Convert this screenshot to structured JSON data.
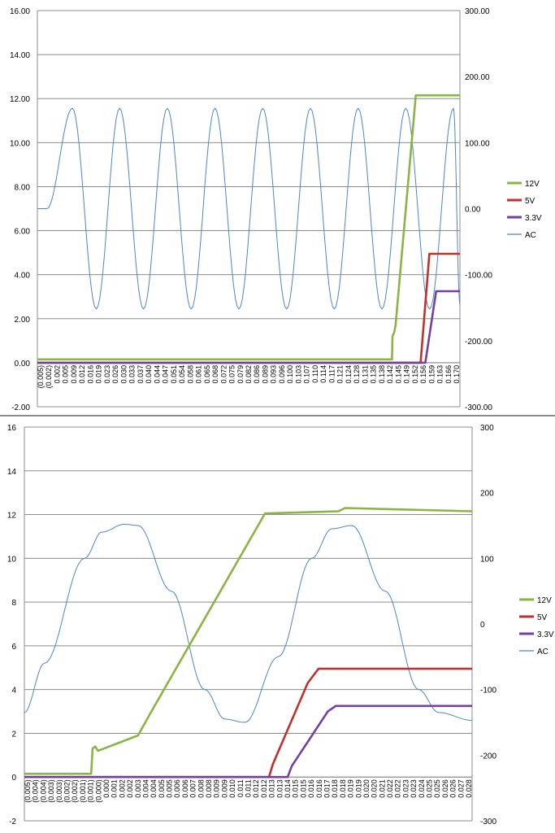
{
  "legend": {
    "items": [
      {
        "label": "12V",
        "color": "#8ab443"
      },
      {
        "label": "5V",
        "color": "#c0312b"
      },
      {
        "label": "3.3V",
        "color": "#7340a0"
      },
      {
        "label": "AC",
        "color": "#4c86c6"
      }
    ],
    "placement": "right"
  },
  "chart_data": [
    {
      "type": "line",
      "title": "",
      "xlabel": "",
      "ylabel": "",
      "ylim": [
        -2,
        16
      ],
      "y_ticks": [
        "-2.00",
        "0.00",
        "2.00",
        "4.00",
        "6.00",
        "8.00",
        "10.00",
        "12.00",
        "14.00",
        "16.00"
      ],
      "y2lim": [
        -300,
        300
      ],
      "y2_ticks": [
        "-300.00",
        "-200.00",
        "-100.00",
        "0.00",
        "100.00",
        "200.00",
        "300.00"
      ],
      "grid": true,
      "x_ticks": [
        "(0.005)",
        "(0.002)",
        "0.002",
        "0.005",
        "0.009",
        "0.012",
        "0.016",
        "0.019",
        "0.023",
        "0.026",
        "0.030",
        "0.033",
        "0.037",
        "0.040",
        "0.044",
        "0.047",
        "0.051",
        "0.054",
        "0.058",
        "0.061",
        "0.065",
        "0.068",
        "0.072",
        "0.075",
        "0.079",
        "0.082",
        "0.086",
        "0.089",
        "0.093",
        "0.096",
        "0.100",
        "0.103",
        "0.107",
        "0.110",
        "0.114",
        "0.117",
        "0.121",
        "0.124",
        "0.128",
        "0.131",
        "0.135",
        "0.138",
        "0.142",
        "0.145",
        "0.149",
        "0.152",
        "0.156",
        "0.159",
        "0.163",
        "0.166",
        "0.170"
      ],
      "series": [
        {
          "name": "12V",
          "axis": "left",
          "x": [
            -0.0052,
            0.1435,
            0.1437,
            0.1445,
            0.145,
            0.1535,
            0.171,
            0.172
          ],
          "y": [
            0.15,
            0.15,
            1.2,
            1.4,
            1.7,
            12.15,
            12.15,
            12.15
          ]
        },
        {
          "name": "5V",
          "axis": "left",
          "x": [
            -0.0052,
            0.1555,
            0.1592,
            0.172
          ],
          "y": [
            0.0,
            0.0,
            4.95,
            4.95
          ]
        },
        {
          "name": "3.3V",
          "axis": "left",
          "x": [
            -0.0052,
            0.1575,
            0.162,
            0.172
          ],
          "y": [
            0.0,
            0.0,
            3.25,
            3.25
          ]
        },
        {
          "name": "AC",
          "axis": "right",
          "x": [
            -0.0052,
            -0.0012,
            0.0095,
            0.0195,
            0.0293,
            0.0393,
            0.0493,
            0.0593,
            0.0693,
            0.0793,
            0.0893,
            0.0993,
            0.1093,
            0.1193,
            0.1293,
            0.1393,
            0.1493,
            0.1593,
            0.1693,
            0.172
          ],
          "y": [
            0,
            0,
            152,
            -152,
            152,
            -152,
            152,
            -152,
            152,
            -152,
            152,
            -152,
            152,
            -152,
            152,
            -152,
            152,
            -152,
            152,
            -145
          ],
          "start_phase_at": -0.0012,
          "start_phase_value": 0,
          "peak": 152
        }
      ]
    },
    {
      "type": "line",
      "title": "",
      "xlabel": "",
      "ylabel": "",
      "ylim": [
        -2,
        16
      ],
      "y_ticks": [
        "-2",
        "0",
        "2",
        "4",
        "6",
        "8",
        "10",
        "12",
        "14",
        "16"
      ],
      "y2lim": [
        -300,
        300
      ],
      "y2_ticks": [
        "-300",
        "-200",
        "-100",
        "0",
        "100",
        "200",
        "300"
      ],
      "grid": true,
      "x_ticks": [
        "(0.005)",
        "(0.004)",
        "(0.004)",
        "(0.003)",
        "(0.003)",
        "(0.002)",
        "(0.002)",
        "(0.001)",
        "(0.001)",
        "(0.000)",
        "0.000",
        "0.001",
        "0.002",
        "0.002",
        "0.003",
        "0.004",
        "0.004",
        "0.005",
        "0.005",
        "0.006",
        "0.006",
        "0.007",
        "0.008",
        "0.008",
        "0.009",
        "0.009",
        "0.010",
        "0.011",
        "0.011",
        "0.012",
        "0.012",
        "0.013",
        "0.013",
        "0.014",
        "0.015",
        "0.015",
        "0.016",
        "0.016",
        "0.017",
        "0.018",
        "0.018",
        "0.019",
        "0.019",
        "0.020",
        "0.020",
        "0.021",
        "0.022",
        "0.022",
        "0.023",
        "0.023",
        "0.024",
        "0.025",
        "0.025",
        "0.026",
        "0.026",
        "0.027",
        "0.028"
      ],
      "series": [
        {
          "name": "12V",
          "axis": "left",
          "x": [
            -0.0055,
            -0.0005,
            -0.0004,
            -0.0002,
            0.0,
            0.003,
            0.004,
            0.0125,
            0.018,
            0.0185,
            0.028
          ],
          "y": [
            0.15,
            0.15,
            1.3,
            1.4,
            1.2,
            1.9,
            3.0,
            12.05,
            12.15,
            12.3,
            12.15
          ]
        },
        {
          "name": "5V",
          "axis": "left",
          "x": [
            -0.0055,
            0.0128,
            0.0131,
            0.0157,
            0.0165,
            0.028
          ],
          "y": [
            0.0,
            0.0,
            0.6,
            4.3,
            4.95,
            4.95
          ]
        },
        {
          "name": "3.3V",
          "axis": "left",
          "x": [
            -0.0055,
            0.0142,
            0.0145,
            0.0172,
            0.0178,
            0.028
          ],
          "y": [
            0.0,
            0.0,
            0.5,
            3.0,
            3.25,
            3.25
          ]
        },
        {
          "name": "AC",
          "axis": "right",
          "x": [
            -0.0055,
            -0.004,
            -0.001,
            0.0003,
            0.002,
            0.003,
            0.0055,
            0.008,
            0.0095,
            0.011,
            0.0135,
            0.016,
            0.0175,
            0.019,
            0.0215,
            0.024,
            0.0255,
            0.028
          ],
          "y": [
            -135,
            -60,
            100,
            140,
            152,
            150,
            50,
            -100,
            -145,
            -150,
            -50,
            100,
            145,
            150,
            50,
            -100,
            -135,
            -147
          ]
        }
      ]
    }
  ]
}
